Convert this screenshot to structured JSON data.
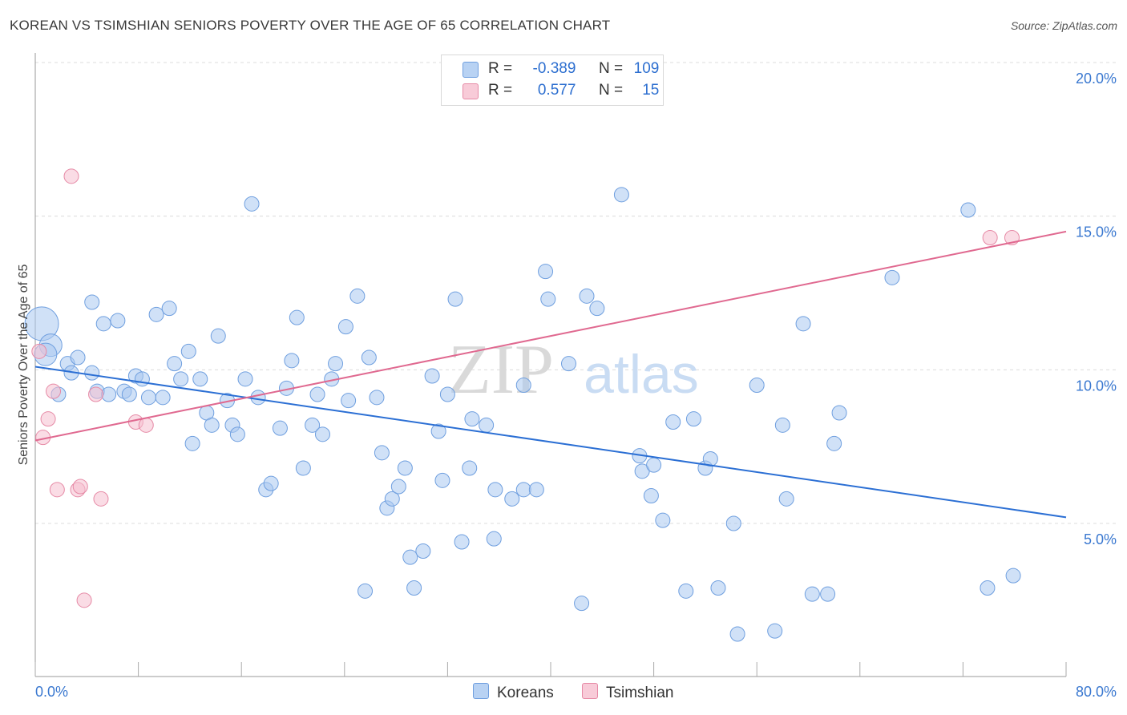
{
  "header": {
    "title": "KOREAN VS TSIMSHIAN SENIORS POVERTY OVER THE AGE OF 65 CORRELATION CHART",
    "source": "Source: ZipAtlas.com"
  },
  "legend": {
    "rows": [
      {
        "r_label": "R =",
        "r_value": "-0.389",
        "n_label": "N =",
        "n_value": "109"
      },
      {
        "r_label": "R =",
        "r_value": "0.577",
        "n_label": "N =",
        "n_value": "15"
      }
    ],
    "bottom": [
      "Koreans",
      "Tsimshian"
    ]
  },
  "watermark": {
    "zip": "ZIP",
    "atlas": "atlas"
  },
  "colors": {
    "korean_fill": "#aac8f0",
    "korean_stroke": "#6f9fdf",
    "korean_line": "#2b6fd4",
    "tsimshian_fill": "#f5c0cf",
    "tsimshian_stroke": "#e68aa6",
    "tsimshian_line": "#e06990",
    "tick_label": "#3a78d0"
  },
  "chart_data": {
    "type": "scatter",
    "title": "KOREAN VS TSIMSHIAN SENIORS POVERTY OVER THE AGE OF 65 CORRELATION CHART",
    "xlabel": "",
    "ylabel": "Seniors Poverty Over the Age of 65",
    "xlim": [
      0,
      80
    ],
    "ylim": [
      0,
      20.5
    ],
    "x_tick_labels": [
      "0.0%",
      "80.0%"
    ],
    "y_ticks": [
      5,
      10,
      15,
      20
    ],
    "y_tick_labels": [
      "5.0%",
      "10.0%",
      "15.0%",
      "20.0%"
    ],
    "grid": "horizontal dashed",
    "legend_position": "top-center",
    "series": [
      {
        "name": "Koreans",
        "r": -0.389,
        "n": 109,
        "trend": {
          "x": [
            0,
            80
          ],
          "y": [
            10.1,
            5.2
          ]
        },
        "points": [
          [
            0.5,
            11.5,
            3
          ],
          [
            1.2,
            10.8,
            2
          ],
          [
            0.8,
            10.5,
            2
          ],
          [
            1.8,
            9.2,
            1
          ],
          [
            2.5,
            10.2,
            1
          ],
          [
            2.8,
            9.9,
            1
          ],
          [
            3.3,
            10.4,
            1
          ],
          [
            4.4,
            12.2,
            1
          ],
          [
            4.4,
            9.9,
            1
          ],
          [
            4.8,
            9.3,
            1
          ],
          [
            5.3,
            11.5,
            1
          ],
          [
            5.7,
            9.2,
            1
          ],
          [
            6.4,
            11.6,
            1
          ],
          [
            6.9,
            9.3,
            1
          ],
          [
            7.3,
            9.2,
            1
          ],
          [
            7.8,
            9.8,
            1
          ],
          [
            8.3,
            9.7,
            1
          ],
          [
            8.8,
            9.1,
            1
          ],
          [
            9.4,
            11.8,
            1
          ],
          [
            9.9,
            9.1,
            1
          ],
          [
            10.4,
            12.0,
            1
          ],
          [
            10.8,
            10.2,
            1
          ],
          [
            11.3,
            9.7,
            1
          ],
          [
            11.9,
            10.6,
            1
          ],
          [
            12.2,
            7.6,
            1
          ],
          [
            12.8,
            9.7,
            1
          ],
          [
            13.3,
            8.6,
            1
          ],
          [
            13.7,
            8.2,
            1
          ],
          [
            14.2,
            11.1,
            1
          ],
          [
            14.9,
            9.0,
            1
          ],
          [
            15.3,
            8.2,
            1
          ],
          [
            15.7,
            7.9,
            1
          ],
          [
            16.3,
            9.7,
            1
          ],
          [
            16.8,
            15.4,
            1
          ],
          [
            17.3,
            9.1,
            1
          ],
          [
            17.9,
            6.1,
            1
          ],
          [
            18.3,
            6.3,
            1
          ],
          [
            19.0,
            8.1,
            1
          ],
          [
            19.5,
            9.4,
            1
          ],
          [
            19.9,
            10.3,
            1
          ],
          [
            20.3,
            11.7,
            1
          ],
          [
            20.8,
            6.8,
            1
          ],
          [
            21.5,
            8.2,
            1
          ],
          [
            21.9,
            9.2,
            1
          ],
          [
            22.3,
            7.9,
            1
          ],
          [
            23.0,
            9.7,
            1
          ],
          [
            23.3,
            10.2,
            1
          ],
          [
            24.1,
            11.4,
            1
          ],
          [
            24.3,
            9.0,
            1
          ],
          [
            25.0,
            12.4,
            1
          ],
          [
            25.6,
            2.8,
            1
          ],
          [
            25.9,
            10.4,
            1
          ],
          [
            26.5,
            9.1,
            1
          ],
          [
            26.9,
            7.3,
            1
          ],
          [
            27.3,
            5.5,
            1
          ],
          [
            27.7,
            5.8,
            1
          ],
          [
            28.2,
            6.2,
            1
          ],
          [
            28.7,
            6.8,
            1
          ],
          [
            29.1,
            3.9,
            1
          ],
          [
            29.4,
            2.9,
            1
          ],
          [
            30.1,
            4.1,
            1
          ],
          [
            30.8,
            9.8,
            1
          ],
          [
            31.3,
            8.0,
            1
          ],
          [
            31.6,
            6.4,
            1
          ],
          [
            32.0,
            9.2,
            1
          ],
          [
            32.6,
            12.3,
            1
          ],
          [
            33.1,
            4.4,
            1
          ],
          [
            33.7,
            6.8,
            1
          ],
          [
            33.9,
            8.4,
            1
          ],
          [
            35.0,
            8.2,
            1
          ],
          [
            35.7,
            6.1,
            1
          ],
          [
            35.6,
            4.5,
            1
          ],
          [
            37.0,
            5.8,
            1
          ],
          [
            37.9,
            6.1,
            1
          ],
          [
            37.9,
            9.5,
            1
          ],
          [
            38.9,
            6.1,
            1
          ],
          [
            39.6,
            13.2,
            1
          ],
          [
            39.8,
            12.3,
            1
          ],
          [
            41.4,
            10.2,
            1
          ],
          [
            42.4,
            2.4,
            1
          ],
          [
            42.8,
            12.4,
            1
          ],
          [
            43.6,
            12.0,
            1
          ],
          [
            45.5,
            15.7,
            1
          ],
          [
            46.9,
            7.2,
            1
          ],
          [
            47.1,
            6.7,
            1
          ],
          [
            47.8,
            5.9,
            1
          ],
          [
            48.0,
            6.9,
            1
          ],
          [
            48.7,
            5.1,
            1
          ],
          [
            49.5,
            8.3,
            1
          ],
          [
            50.5,
            2.8,
            1
          ],
          [
            51.1,
            8.4,
            1
          ],
          [
            52.0,
            6.8,
            1
          ],
          [
            52.4,
            7.1,
            1
          ],
          [
            53.0,
            2.9,
            1
          ],
          [
            54.2,
            5.0,
            1
          ],
          [
            54.5,
            1.4,
            1
          ],
          [
            56.0,
            9.5,
            1
          ],
          [
            57.4,
            1.5,
            1
          ],
          [
            58.0,
            8.2,
            1
          ],
          [
            58.3,
            5.8,
            1
          ],
          [
            59.6,
            11.5,
            1
          ],
          [
            60.3,
            2.7,
            1
          ],
          [
            61.5,
            2.7,
            1
          ],
          [
            62.0,
            7.6,
            1
          ],
          [
            62.4,
            8.6,
            1
          ],
          [
            66.5,
            13.0,
            1
          ],
          [
            72.4,
            15.2,
            1
          ],
          [
            73.9,
            2.9,
            1
          ],
          [
            75.9,
            3.3,
            1
          ]
        ]
      },
      {
        "name": "Tsimshian",
        "r": 0.577,
        "n": 15,
        "trend": {
          "x": [
            0,
            80
          ],
          "y": [
            7.7,
            14.5
          ]
        },
        "points": [
          [
            0.3,
            10.6
          ],
          [
            0.6,
            7.8
          ],
          [
            1.0,
            8.4
          ],
          [
            1.4,
            9.3
          ],
          [
            1.7,
            6.1
          ],
          [
            2.8,
            16.3
          ],
          [
            3.3,
            6.1
          ],
          [
            3.5,
            6.2
          ],
          [
            3.8,
            2.5
          ],
          [
            4.7,
            9.2
          ],
          [
            5.1,
            5.8
          ],
          [
            7.8,
            8.3
          ],
          [
            8.6,
            8.2
          ],
          [
            74.1,
            14.3
          ],
          [
            75.8,
            14.3
          ]
        ]
      }
    ]
  }
}
